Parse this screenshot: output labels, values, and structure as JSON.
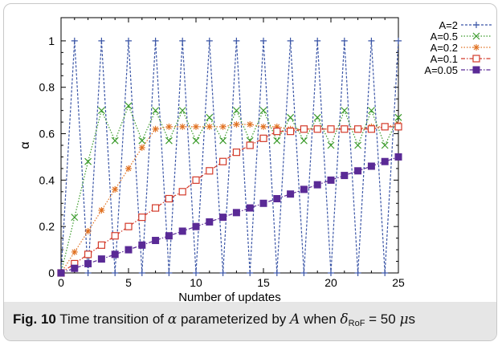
{
  "caption": {
    "fig_label": "Fig. 10",
    "text_before": " Time transition of ",
    "alpha_symbol": "α",
    "text_middle": " parameterized by ",
    "param_symbol": "A",
    "text_when": " when ",
    "delta_symbol": "δ",
    "delta_subscript": "RoF",
    "text_equals": " = 50 ",
    "mu_symbol": "μ",
    "unit": "s"
  },
  "chart_data": {
    "type": "line",
    "xlabel": "Number of updates",
    "ylabel": "α",
    "xlim": [
      0,
      25
    ],
    "ylim": [
      0,
      1.1
    ],
    "x_ticks": [
      0,
      5,
      10,
      15,
      20,
      25
    ],
    "y_ticks": [
      0,
      0.2,
      0.4,
      0.6,
      0.8,
      1
    ],
    "grid": false,
    "legend_position": "top-right",
    "x": [
      0,
      1,
      2,
      3,
      4,
      5,
      6,
      7,
      8,
      9,
      10,
      11,
      12,
      13,
      14,
      15,
      16,
      17,
      18,
      19,
      20,
      21,
      22,
      23,
      24,
      25
    ],
    "series": [
      {
        "name": "A=2",
        "color": "#3a55a6",
        "marker": "plus",
        "dash": "dash",
        "values": [
          0,
          1,
          0,
          1,
          0,
          1,
          0,
          1,
          0,
          1,
          0,
          1,
          0,
          1,
          0,
          1,
          0,
          1,
          0,
          1,
          0,
          1,
          0,
          1,
          0,
          1
        ]
      },
      {
        "name": "A=0.5",
        "color": "#3a9a2a",
        "marker": "x",
        "dash": "dot",
        "values": [
          0,
          0.24,
          0.48,
          0.7,
          0.57,
          0.72,
          0.57,
          0.7,
          0.57,
          0.7,
          0.57,
          0.67,
          0.57,
          0.7,
          0.57,
          0.7,
          0.57,
          0.67,
          0.57,
          0.67,
          0.55,
          0.7,
          0.55,
          0.7,
          0.55,
          0.67
        ]
      },
      {
        "name": "A=0.2",
        "color": "#e07020",
        "marker": "star",
        "dash": "dot",
        "values": [
          0,
          0.09,
          0.18,
          0.27,
          0.36,
          0.45,
          0.54,
          0.62,
          0.63,
          0.63,
          0.63,
          0.63,
          0.63,
          0.64,
          0.64,
          0.63,
          0.63,
          0.62,
          0.62,
          0.62,
          0.62,
          0.62,
          0.62,
          0.63,
          0.63,
          0.64
        ]
      },
      {
        "name": "A=0.1",
        "color": "#d33a2a",
        "marker": "square-open",
        "dash": "dashdot",
        "values": [
          0,
          0.04,
          0.08,
          0.12,
          0.16,
          0.2,
          0.24,
          0.28,
          0.32,
          0.35,
          0.4,
          0.44,
          0.48,
          0.52,
          0.55,
          0.58,
          0.61,
          0.61,
          0.62,
          0.62,
          0.62,
          0.62,
          0.62,
          0.62,
          0.63,
          0.63
        ]
      },
      {
        "name": "A=0.05",
        "color": "#5a2a96",
        "marker": "square-filled",
        "dash": "dashdot",
        "values": [
          0,
          0.02,
          0.04,
          0.06,
          0.08,
          0.1,
          0.12,
          0.14,
          0.16,
          0.18,
          0.2,
          0.22,
          0.24,
          0.26,
          0.28,
          0.3,
          0.32,
          0.34,
          0.36,
          0.38,
          0.4,
          0.42,
          0.44,
          0.46,
          0.48,
          0.5
        ]
      }
    ]
  }
}
